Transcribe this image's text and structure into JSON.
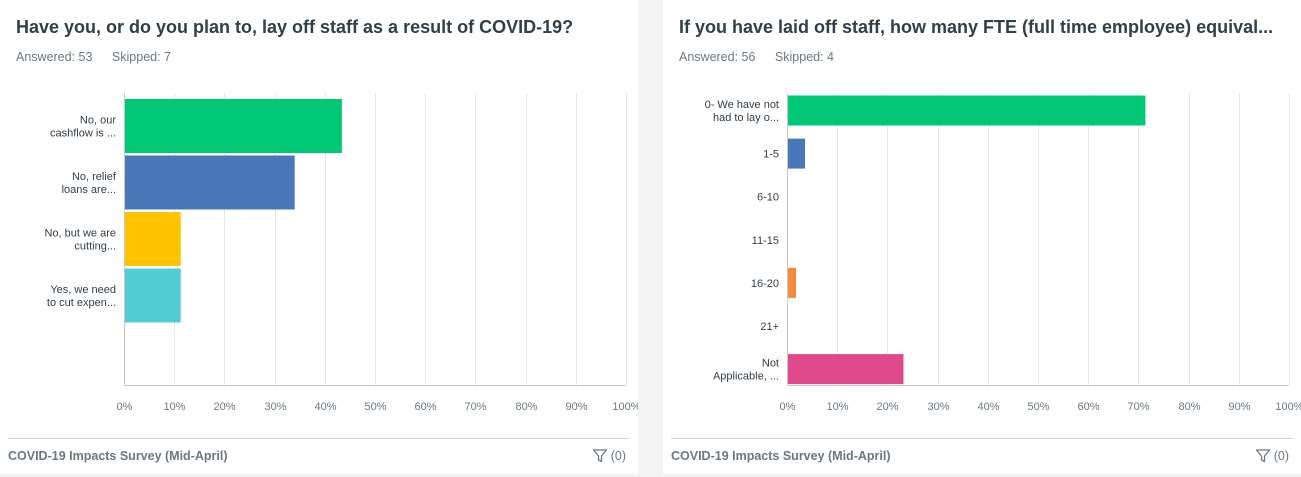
{
  "panels": [
    {
      "title": "Have you, or do you plan to, lay off staff as a result of COVID-19?",
      "answered": "Answered: 53",
      "skipped": "Skipped: 7",
      "footer": "COVID-19 Impacts Survey (Mid-April)",
      "filter_count": "(0)"
    },
    {
      "title": "If you have laid off staff, how many FTE (full time employee) equival...",
      "answered": "Answered: 56",
      "skipped": "Skipped: 4",
      "footer": "COVID-19 Impacts Survey (Mid-April)",
      "filter_count": "(0)"
    }
  ],
  "icons": {
    "filter": "filter-funnel-icon"
  },
  "chart_data": [
    {
      "type": "bar",
      "orientation": "horizontal",
      "categories": [
        [
          "No, our",
          "cashflow is ..."
        ],
        [
          "No, relief",
          "loans are..."
        ],
        [
          "No, but we are",
          "cutting..."
        ],
        [
          "Yes, we need",
          "to cut expen..."
        ]
      ],
      "values": [
        43.4,
        34.0,
        11.3,
        11.3
      ],
      "colors": [
        "#00c875",
        "#4a77b9",
        "#ffc300",
        "#52ccd4"
      ],
      "xlim": [
        0,
        100
      ],
      "xticks": [
        "0%",
        "10%",
        "20%",
        "30%",
        "40%",
        "50%",
        "60%",
        "70%",
        "80%",
        "90%",
        "100%"
      ],
      "grid": true
    },
    {
      "type": "bar",
      "orientation": "horizontal",
      "categories": [
        [
          "0- We have not",
          "had to lay o..."
        ],
        [
          "1-5"
        ],
        [
          "6-10"
        ],
        [
          "11-15"
        ],
        [
          "16-20"
        ],
        [
          "21+"
        ],
        [
          "Not",
          "Applicable, ..."
        ]
      ],
      "values": [
        71.4,
        3.6,
        0,
        0,
        1.8,
        0,
        23.2
      ],
      "colors": [
        "#00c875",
        "#4a77b9",
        "#ffc300",
        "#52ccd4",
        "#f58a3d",
        "#b57fdc",
        "#e0498b"
      ],
      "xlim": [
        0,
        100
      ],
      "xticks": [
        "0%",
        "10%",
        "20%",
        "30%",
        "40%",
        "50%",
        "60%",
        "70%",
        "80%",
        "90%",
        "100%"
      ],
      "grid": true
    }
  ]
}
